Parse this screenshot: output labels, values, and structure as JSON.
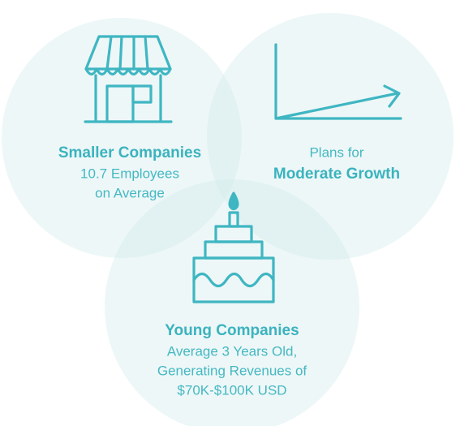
{
  "nodes": [
    {
      "title": "Smaller Companies",
      "lines": [
        "10.7 Employees",
        "on Average"
      ]
    },
    {
      "lines": [
        "Plans for"
      ],
      "title": "Moderate Growth"
    },
    {
      "title": "Young Companies",
      "lines": [
        "Average 3 Years Old,",
        "Generating Revenues of",
        "$70K-$100K USD"
      ]
    }
  ]
}
